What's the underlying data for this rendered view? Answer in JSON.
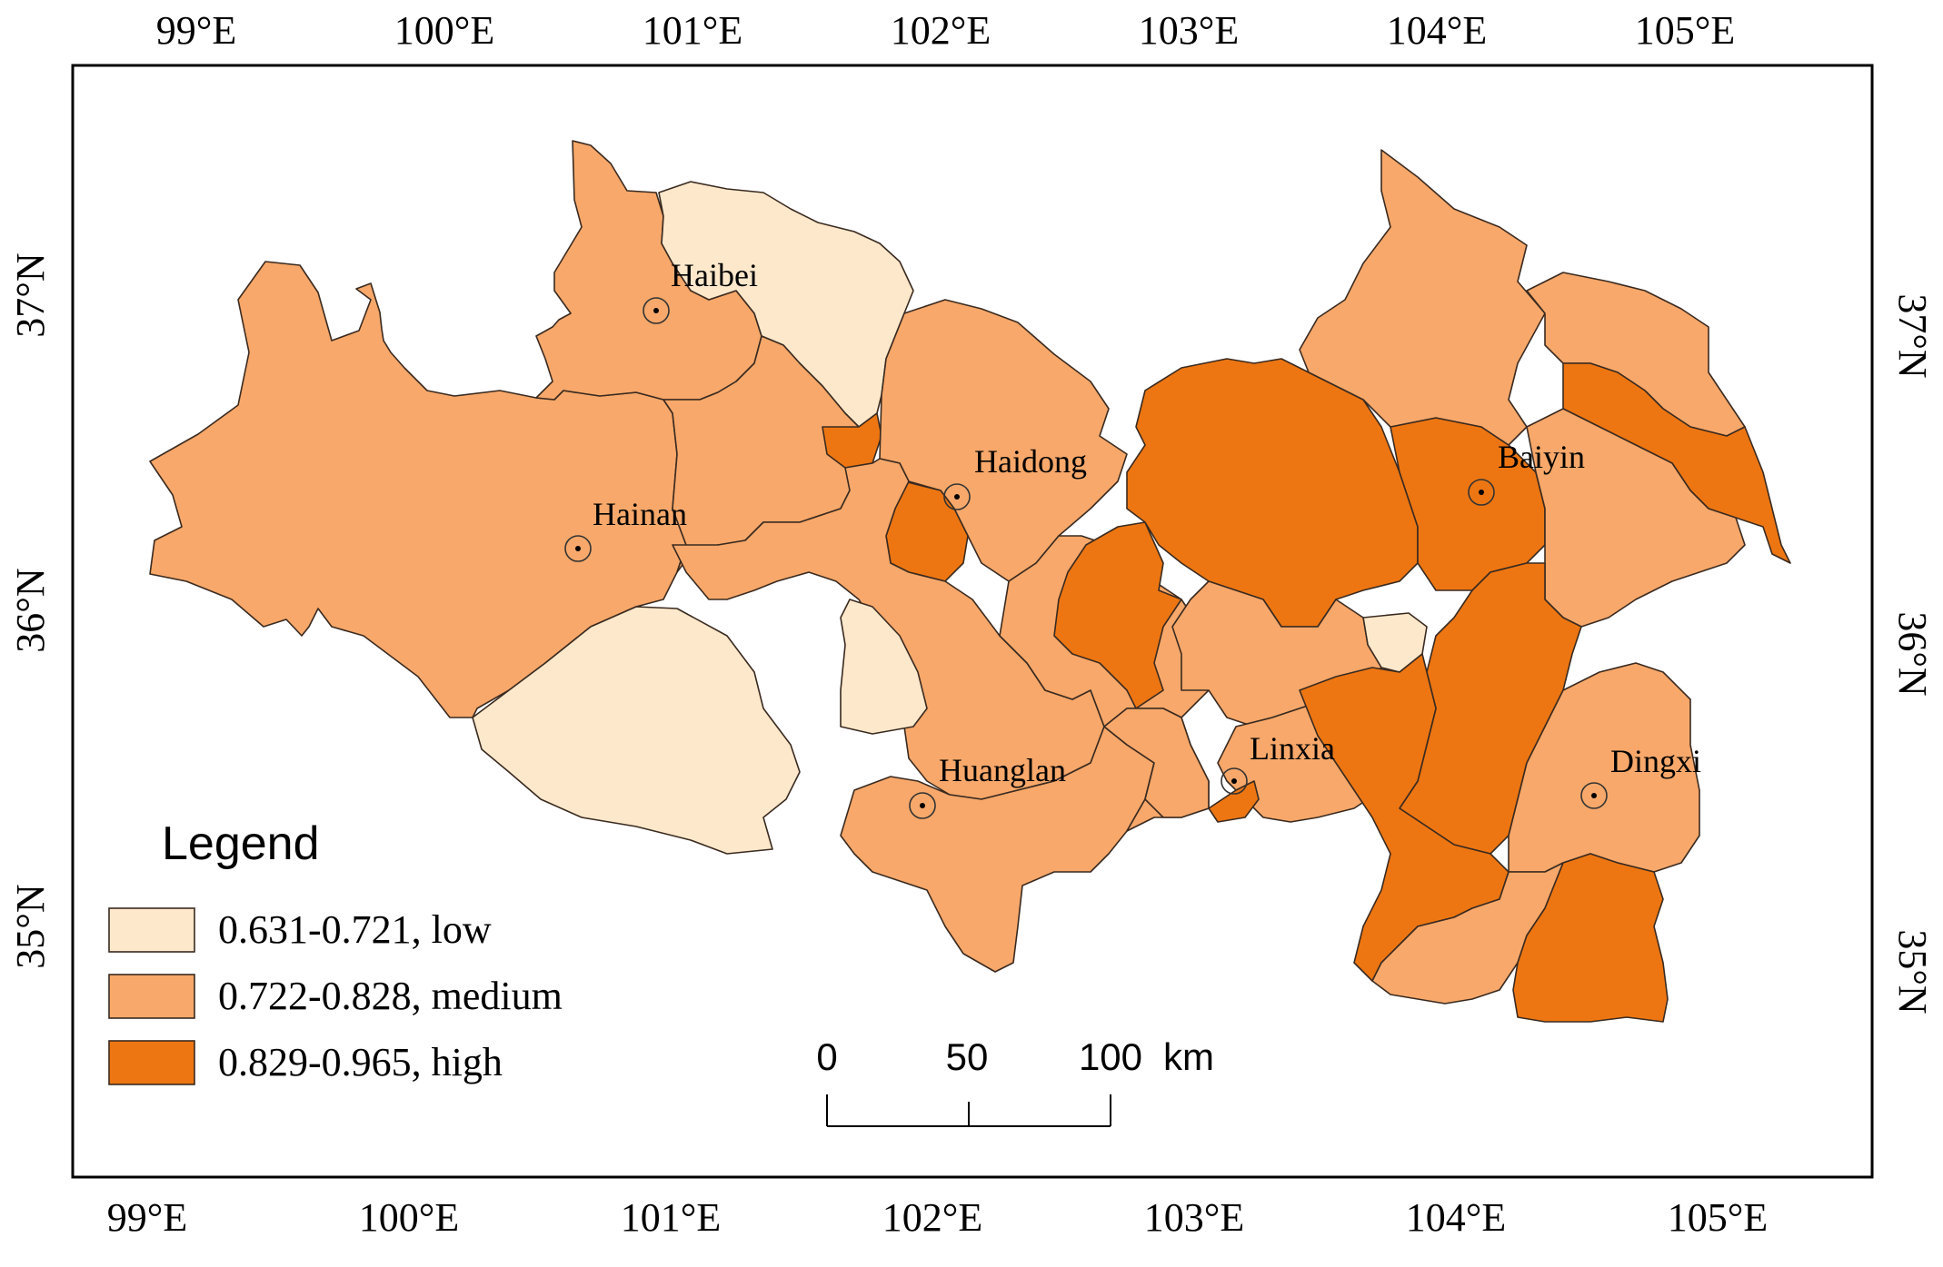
{
  "colors": {
    "low": "#fde8cb",
    "medium": "#f7a86a",
    "high": "#ed7612",
    "frame": "#000000"
  },
  "axes": {
    "x_ticks": [
      "99°E",
      "100°E",
      "101°E",
      "102°E",
      "103°E",
      "104°E",
      "105°E"
    ],
    "y_ticks": [
      "37°N",
      "36°N",
      "35°N"
    ]
  },
  "cities": [
    {
      "id": "haibei",
      "name": "Haibei"
    },
    {
      "id": "hainan",
      "name": "Hainan"
    },
    {
      "id": "haidong",
      "name": "Haidong"
    },
    {
      "id": "huanglan",
      "name": "Huanglan"
    },
    {
      "id": "linxia",
      "name": "Linxia"
    },
    {
      "id": "baiyin",
      "name": "Baiyin"
    },
    {
      "id": "dingxi",
      "name": "Dingxi"
    }
  ],
  "legend": {
    "title": "Legend",
    "items": [
      {
        "class": "low",
        "label": "0.631-0.721, low"
      },
      {
        "class": "medium",
        "label": "0.722-0.828, medium"
      },
      {
        "class": "high",
        "label": "0.829-0.965, high"
      }
    ]
  },
  "scale_bar": {
    "labels": [
      "0",
      "50",
      "100"
    ],
    "unit": "km"
  }
}
